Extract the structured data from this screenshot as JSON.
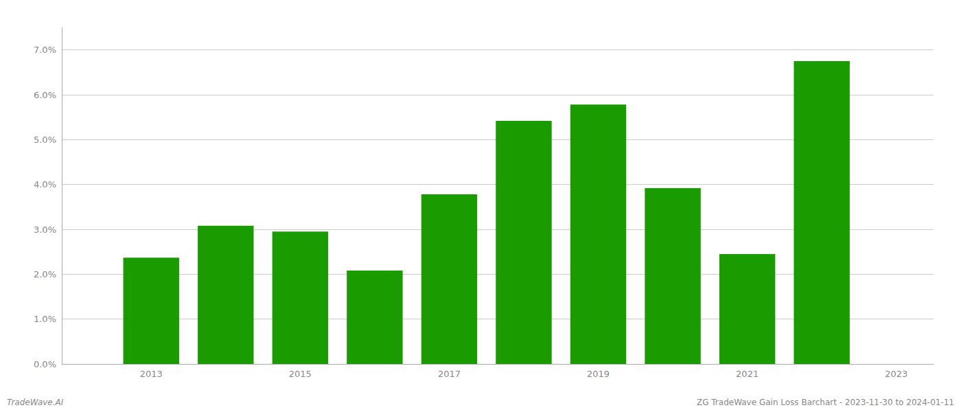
{
  "chart_data": {
    "type": "bar",
    "x": [
      2013,
      2014,
      2015,
      2016,
      2017,
      2018,
      2019,
      2020,
      2021,
      2022
    ],
    "values": [
      0.0237,
      0.0308,
      0.0295,
      0.0208,
      0.0378,
      0.0542,
      0.0578,
      0.0392,
      0.0245,
      0.0675
    ],
    "color": "#1a9b00",
    "xlim": [
      2011.8,
      2023.5
    ],
    "xticks": [
      2013,
      2015,
      2017,
      2019,
      2021,
      2023
    ],
    "ylim": [
      0,
      0.075
    ],
    "yticks": [
      {
        "value": 0.0,
        "label": "0.0%"
      },
      {
        "value": 0.01,
        "label": "1.0%"
      },
      {
        "value": 0.02,
        "label": "2.0%"
      },
      {
        "value": 0.03,
        "label": "3.0%"
      },
      {
        "value": 0.04,
        "label": "4.0%"
      },
      {
        "value": 0.05,
        "label": "5.0%"
      },
      {
        "value": 0.06,
        "label": "6.0%"
      },
      {
        "value": 0.07,
        "label": "7.0%"
      }
    ],
    "grid": true,
    "annotations": [
      "TradeWave.AI",
      "ZG TradeWave Gain Loss Barchart - 2023-11-30 to 2024-01-11"
    ]
  }
}
